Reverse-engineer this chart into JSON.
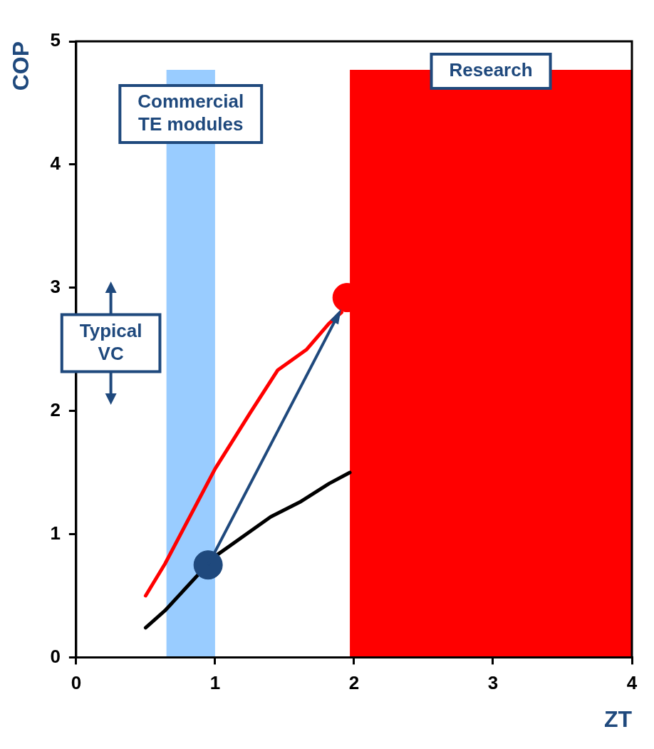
{
  "chart_data": {
    "type": "line",
    "xlabel": "ZT",
    "ylabel": "COP",
    "xlim": [
      0,
      4
    ],
    "ylim": [
      0,
      5
    ],
    "xticks": [
      0,
      1,
      2,
      3,
      4
    ],
    "yticks": [
      0,
      1,
      2,
      3,
      4,
      5
    ],
    "grid": false,
    "legend": false,
    "series": [
      {
        "color": "#ff0000",
        "x": [
          0.5,
          0.64,
          1.0,
          1.25,
          1.45,
          1.66,
          1.82,
          1.91
        ],
        "values": [
          0.5,
          0.76,
          1.53,
          1.98,
          2.33,
          2.5,
          2.71,
          2.8
        ],
        "marker": "none"
      },
      {
        "color": "#000000",
        "x": [
          0.5,
          0.64,
          1.0,
          1.4,
          1.61,
          1.82,
          1.97
        ],
        "values": [
          0.24,
          0.38,
          0.82,
          1.14,
          1.26,
          1.41,
          1.5
        ],
        "marker": "none"
      },
      {
        "type": "scatter",
        "color": "#1f497d",
        "x": [
          0.95
        ],
        "values": [
          0.75
        ],
        "marker": "circle"
      },
      {
        "type": "scatter",
        "color": "#ff0000",
        "x": [
          1.95
        ],
        "values": [
          2.92
        ],
        "marker": "circle"
      }
    ],
    "bands": [
      {
        "axis": "x",
        "from": 0.65,
        "to": 1.0,
        "label": "Commercial TE modules",
        "color": "#99ccff"
      },
      {
        "axis": "x",
        "from": 1.97,
        "to": 4,
        "label": "Research",
        "color": "#ff0000"
      }
    ],
    "annotations": [
      "Typical VC"
    ]
  }
}
